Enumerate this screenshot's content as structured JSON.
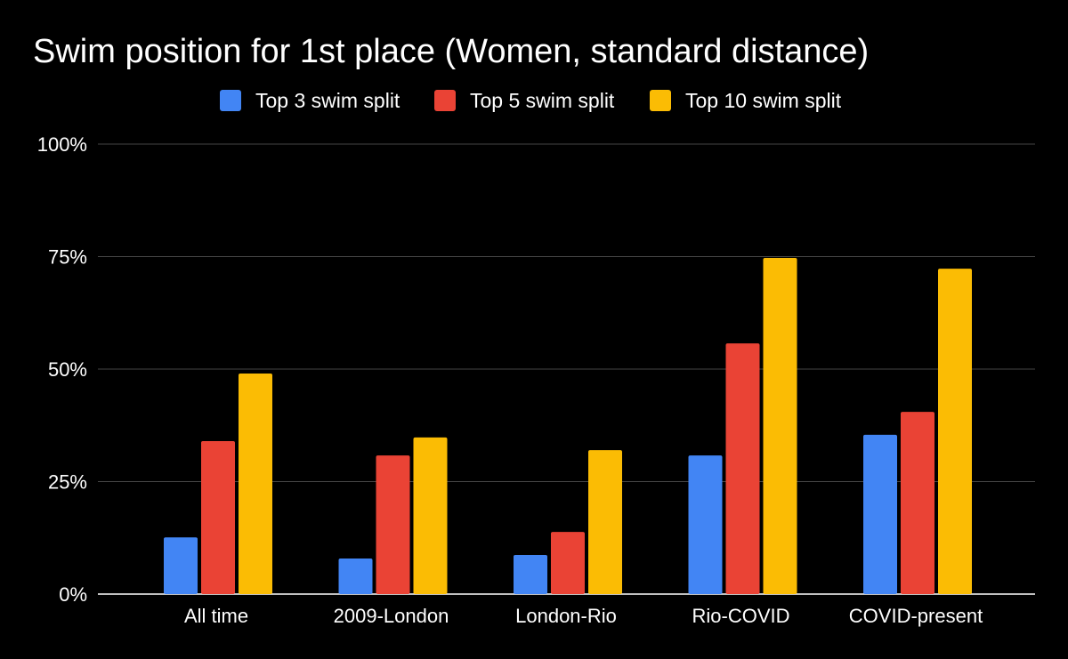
{
  "chart_data": {
    "type": "bar",
    "title": "Swim position for 1st place (Women, standard distance)",
    "xlabel": "",
    "ylabel": "",
    "ylim": [
      0,
      100
    ],
    "yticks": [
      "0%",
      "25%",
      "50%",
      "75%",
      "100%"
    ],
    "ytick_values": [
      0,
      25,
      50,
      75,
      100
    ],
    "grid": true,
    "legend_position": "top",
    "categories": [
      "All time",
      "2009-London",
      "London-Rio",
      "Rio-COVID",
      "COVID-present"
    ],
    "series": [
      {
        "name": "Top 3 swim split",
        "color": "#4285F4",
        "values": [
          12.6,
          7.9,
          8.7,
          30.8,
          35.4
        ]
      },
      {
        "name": "Top 5 swim split",
        "color": "#EA4335",
        "values": [
          34.0,
          30.8,
          13.8,
          55.7,
          40.5
        ]
      },
      {
        "name": "Top 10 swim split",
        "color": "#FBBC04",
        "values": [
          49.0,
          34.8,
          32.0,
          74.7,
          72.3
        ]
      }
    ]
  }
}
